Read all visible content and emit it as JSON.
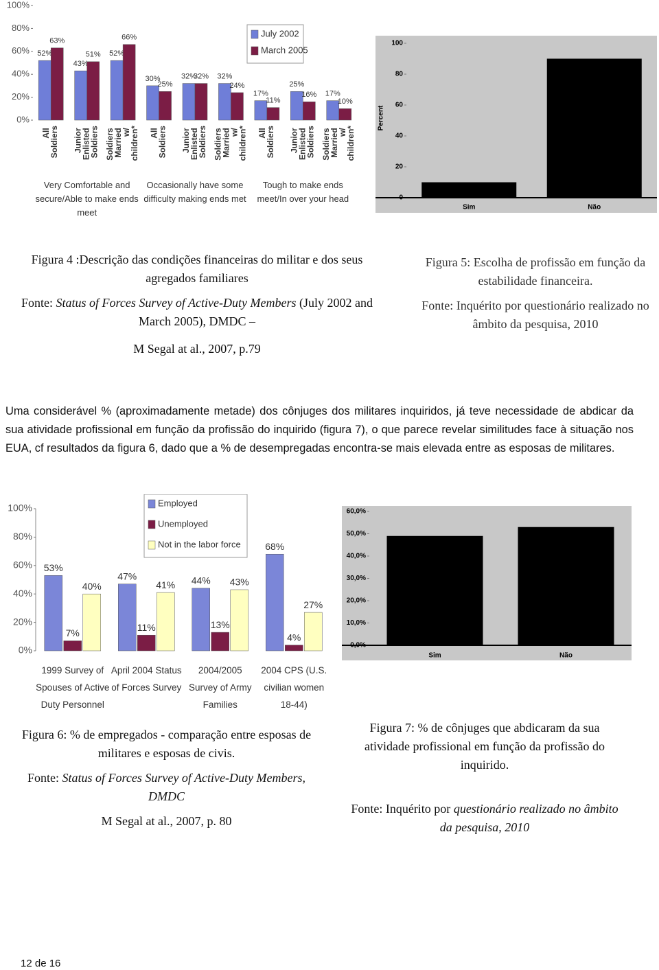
{
  "chart_data": [
    {
      "type": "bar",
      "categories": [
        "All Soldiers",
        "Junior Enlisted Soldiers",
        "Soldiers Married w/ children*",
        "All Soldiers",
        "Junior Enlisted Soldiers",
        "Soldiers Married w/ children*",
        "All Soldiers",
        "Junior Enlisted Soldiers",
        "Soldiers Married w/ children*"
      ],
      "groups": [
        "Very Comfortable and secure/Able to make ends meet",
        "Occasionally have some difficulty making ends met",
        "Tough to make ends meet/In over your head"
      ],
      "series": [
        {
          "name": "July 2002",
          "color": "#6f7ed8",
          "values": [
            52,
            43,
            52,
            30,
            32,
            32,
            17,
            25,
            17
          ],
          "value_labels": [
            "52%",
            "43%",
            "52%",
            "30%",
            "32%",
            "32%",
            "17%",
            "25%",
            "17%"
          ]
        },
        {
          "name": "March 2005",
          "color": "#7b1d45",
          "values": [
            63,
            51,
            66,
            25,
            32,
            24,
            11,
            16,
            10
          ],
          "value_labels": [
            "63%",
            "51%",
            "66%",
            "25%",
            "32%",
            "24%",
            "11%",
            "16%",
            "10%"
          ]
        }
      ],
      "ylim": [
        0,
        100
      ],
      "yticks": [
        {
          "value": 0,
          "label": "0%"
        },
        {
          "value": 20,
          "label": "20%"
        },
        {
          "value": 40,
          "label": "40%"
        },
        {
          "value": 60,
          "label": "60%"
        },
        {
          "value": 80,
          "label": "80%"
        },
        {
          "value": 100,
          "label": "100%"
        }
      ],
      "legend": "upper right"
    },
    {
      "type": "bar",
      "categories": [
        "Sim",
        "Não"
      ],
      "values": [
        10,
        90
      ],
      "color": "#000000",
      "ylabel": "Percent",
      "ylim": [
        0,
        100
      ],
      "yticks": [
        0,
        20,
        40,
        60,
        80,
        100
      ]
    },
    {
      "type": "bar",
      "categories": [
        "1999 Survey of Spouses of Active Duty Personnel",
        "April 2004 Status of Forces Survey",
        "2004/2005 Survey of Army Families",
        "2004 CPS (U.S. civilian women 18-44)"
      ],
      "series": [
        {
          "name": "Employed",
          "color": "#7b86d8",
          "values": [
            53,
            47,
            44,
            68
          ],
          "value_labels": [
            "53%",
            "47%",
            "44%",
            "68%"
          ]
        },
        {
          "name": "Unemployed",
          "color": "#7b1d45",
          "values": [
            7,
            11,
            13,
            4
          ],
          "value_labels": [
            "7%",
            "11%",
            "13%",
            "4%"
          ]
        },
        {
          "name": "Not in the labor force",
          "color": "#ffffc0",
          "values": [
            40,
            41,
            43,
            27
          ],
          "value_labels": [
            "40%",
            "41%",
            "43%",
            "27%"
          ]
        }
      ],
      "ylim": [
        0,
        100
      ],
      "yticks": [
        {
          "value": 0,
          "label": "0%"
        },
        {
          "value": 20,
          "label": "20%"
        },
        {
          "value": 40,
          "label": "40%"
        },
        {
          "value": 60,
          "label": "60%"
        },
        {
          "value": 80,
          "label": "80%"
        },
        {
          "value": 100,
          "label": "100%"
        }
      ],
      "legend": "upper center"
    },
    {
      "type": "bar",
      "categories": [
        "Sim",
        "Não"
      ],
      "values": [
        49,
        53
      ],
      "color": "#000000",
      "ylim": [
        0,
        60
      ],
      "yticks": [
        {
          "value": 0,
          "label": "0,0%"
        },
        {
          "value": 10,
          "label": "10,0%"
        },
        {
          "value": 20,
          "label": "20,0%"
        },
        {
          "value": 30,
          "label": "30,0%"
        },
        {
          "value": 40,
          "label": "40,0%"
        },
        {
          "value": 50,
          "label": "50,0%"
        },
        {
          "value": 60,
          "label": "60,0%"
        }
      ]
    }
  ],
  "figure4": {
    "title": "Figura 4 :Descrição das condições financeiras do militar e dos seus agregados familiares",
    "source_prefix": "Fonte:",
    "source_italic": "Status of Forces Survey of Active-Duty Members",
    "source_suffix": "(July 2002 and March 2005), DMDC –",
    "reference": "M Segal at al., 2007, p.79"
  },
  "figure5": {
    "title": "Figura 5: Escolha de profissão em função da estabilidade financeira.",
    "source": "Fonte: Inquérito por questionário realizado no âmbito da pesquisa, 2010"
  },
  "paragraph": "Uma considerável % (aproximadamente metade) dos cônjuges dos militares inquiridos, já teve necessidade de abdicar da sua atividade profissional em função da profissão do inquirido (figura 7), o que parece revelar similitudes face à situação nos EUA, cf resultados da figura 6, dado que a % de desempregadas encontra-se mais elevada entre as esposas de militares.",
  "figure6": {
    "title": "Figura 6: % de empregados - comparação entre esposas de militares e esposas de civis.",
    "source_prefix": "Fonte:",
    "source_italic": "Status of Forces Survey of Active-Duty Members, DMDC",
    "reference": "M Segal at al., 2007, p. 80"
  },
  "figure7": {
    "title": "Figura 7: % de cônjuges que abdicaram da sua atividade profissional em função da profissão do inquirido.",
    "source_prefix": "Fonte: Inquérito por",
    "source_italic": "questionário realizado no âmbito da pesquisa, 2010"
  },
  "footer": "12 de 16"
}
